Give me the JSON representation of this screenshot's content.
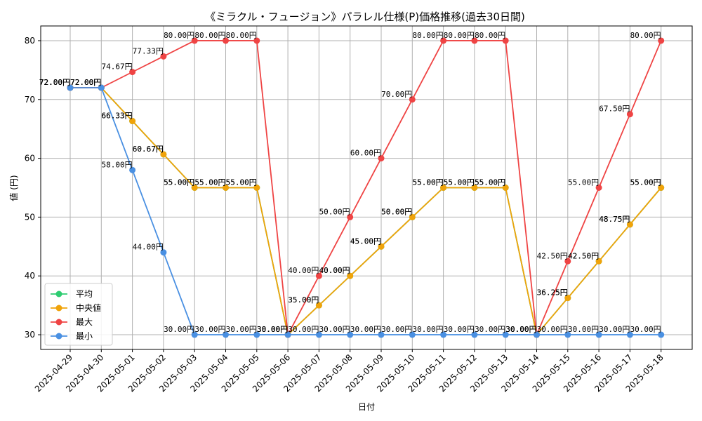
{
  "chart_data": {
    "type": "line",
    "title": "《ミラクル・フュージョン》パラレル仕様(P)価格推移(過去30日間)",
    "xlabel": "日付",
    "ylabel": "値 (円)",
    "ylim": [
      27.5,
      82.5
    ],
    "yticks": [
      30,
      40,
      50,
      60,
      70,
      80
    ],
    "grid": true,
    "legend_position": "lower-left",
    "categories": [
      "2025-04-29",
      "2025-04-30",
      "2025-05-01",
      "2025-05-02",
      "2025-05-03",
      "2025-05-04",
      "2025-05-05",
      "2025-05-06",
      "2025-05-07",
      "2025-05-08",
      "2025-05-09",
      "2025-05-10",
      "2025-05-11",
      "2025-05-12",
      "2025-05-13",
      "2025-05-14",
      "2025-05-15",
      "2025-05-16",
      "2025-05-17",
      "2025-05-18"
    ],
    "series": [
      {
        "name": "平均",
        "color": "#2ecc71",
        "values": [
          72.0,
          72.0,
          66.33,
          60.67,
          55.0,
          55.0,
          55.0,
          30.0,
          35.0,
          40.0,
          45.0,
          50.0,
          55.0,
          55.0,
          55.0,
          30.0,
          36.25,
          42.5,
          48.75,
          55.0
        ],
        "labels": [
          "72.00円",
          "72.00円",
          "66.33円",
          "60.67円",
          "55.00円",
          "55.00円",
          "55.00円",
          "30.00円",
          "35.00円",
          "40.00円",
          "45.00円",
          "50.00円",
          "55.00円",
          "55.00円",
          "55.00円",
          "30.00円",
          "36.25円",
          "42.50円",
          "48.75円",
          "55.00円"
        ]
      },
      {
        "name": "中央値",
        "color": "#f0a30a",
        "values": [
          72.0,
          72.0,
          66.33,
          60.67,
          55.0,
          55.0,
          55.0,
          30.0,
          35.0,
          40.0,
          45.0,
          50.0,
          55.0,
          55.0,
          55.0,
          30.0,
          36.25,
          42.5,
          48.75,
          55.0
        ],
        "labels": [
          "72.00円",
          "72.00円",
          "66.33円",
          "60.67円",
          "55.00円",
          "55.00円",
          "55.00円",
          "30.00円",
          "35.00円",
          "40.00円",
          "45.00円",
          "50.00円",
          "55.00円",
          "55.00円",
          "55.00円",
          "30.00円",
          "36.25円",
          "42.50円",
          "48.75円",
          "55.00円"
        ]
      },
      {
        "name": "最大",
        "color": "#ef4444",
        "values": [
          72.0,
          72.0,
          74.67,
          77.33,
          80.0,
          80.0,
          80.0,
          30.0,
          40.0,
          50.0,
          60.0,
          70.0,
          80.0,
          80.0,
          80.0,
          30.0,
          42.5,
          55.0,
          67.5,
          80.0
        ],
        "labels": [
          "72.00円",
          "72.00円",
          "74.67円",
          "77.33円",
          "80.00円",
          "80.00円",
          "80.00円",
          "30.00円",
          "40.00円",
          "50.00円",
          "60.00円",
          "70.00円",
          "80.00円",
          "80.00円",
          "80.00円",
          "30.00円",
          "42.50円",
          "55.00円",
          "67.50円",
          "80.00円"
        ]
      },
      {
        "name": "最小",
        "color": "#4a90e2",
        "values": [
          72.0,
          72.0,
          58.0,
          44.0,
          30.0,
          30.0,
          30.0,
          30.0,
          30.0,
          30.0,
          30.0,
          30.0,
          30.0,
          30.0,
          30.0,
          30.0,
          30.0,
          30.0,
          30.0,
          30.0
        ],
        "labels": [
          "72.00円",
          "72.00円",
          "58.00円",
          "44.00円",
          "30.00円",
          "30.00円",
          "30.00円",
          "30.00円",
          "30.00円",
          "30.00円",
          "30.00円",
          "30.00円",
          "30.00円",
          "30.00円",
          "30.00円",
          "30.00円",
          "30.00円",
          "30.00円",
          "30.00円",
          "30.00円"
        ]
      }
    ]
  }
}
